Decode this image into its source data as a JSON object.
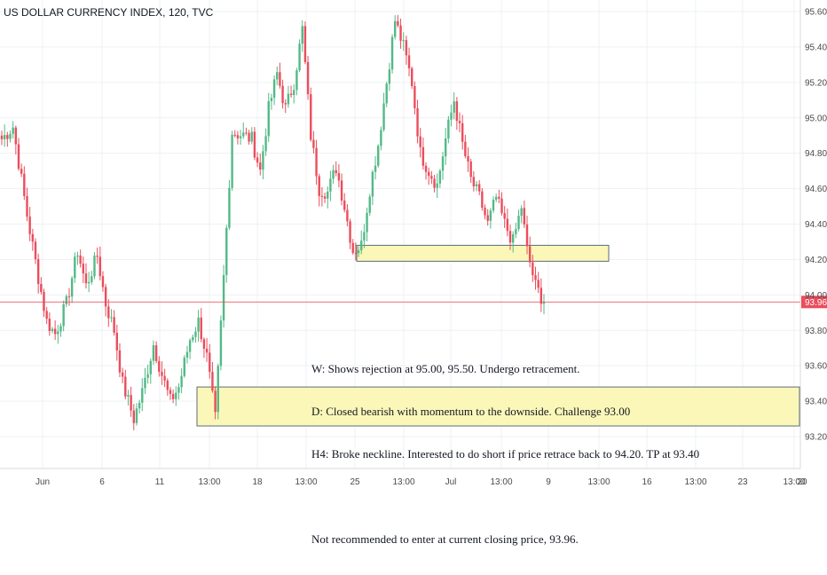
{
  "chart_title": "US DOLLAR CURRENCY INDEX, 120, TVC",
  "colors": {
    "up": "#53b987",
    "down": "#eb4d5c",
    "grid": "#eef0f3",
    "axis_text": "#4a4a4a",
    "zone_fill": "#fbf7b8",
    "zone_stroke": "#5b6e7a",
    "price_line": "#eb4d5c",
    "price_badge": "#eb4d5c"
  },
  "annotation_lines": [
    "W: Shows rejection at 95.00, 95.50. Undergo retracement.",
    "D: Closed bearish with momentum to the downside. Challenge 93.00",
    "H4: Broke neckline. Interested to do short if price retrace back to 94.20. TP at 93.40",
    "",
    "Not recommended to enter at current closing price, 93.96."
  ],
  "chart_data": {
    "type": "candlestick",
    "title": "US DOLLAR CURRENCY INDEX, 120, TVC",
    "ylim": [
      93.15,
      95.72
    ],
    "y_ticks": [
      "95.60",
      "95.40",
      "95.20",
      "95.00",
      "94.80",
      "94.60",
      "94.40",
      "94.20",
      "94.00",
      "93.80",
      "93.60",
      "93.40",
      "93.20"
    ],
    "x_ticks": [
      "Jun",
      "6",
      "11",
      "13:00",
      "18",
      "13:00",
      "25",
      "13:00",
      "Jul",
      "13:00",
      "9",
      "13:00",
      "16",
      "13:00",
      "23",
      "13:00",
      "20"
    ],
    "last_price": "93.96",
    "zones": [
      {
        "label": "resistance-zone",
        "y_low": 94.19,
        "y_high": 94.28
      },
      {
        "label": "target-zone",
        "y_low": 93.26,
        "y_high": 93.48
      }
    ],
    "anchors": [
      [
        0,
        94.88
      ],
      [
        4,
        94.95
      ],
      [
        9,
        94.45
      ],
      [
        13,
        94.1
      ],
      [
        16,
        93.85
      ],
      [
        19,
        93.78
      ],
      [
        23,
        93.95
      ],
      [
        27,
        94.25
      ],
      [
        30,
        94.05
      ],
      [
        34,
        94.22
      ],
      [
        37,
        93.95
      ],
      [
        40,
        93.8
      ],
      [
        43,
        93.5
      ],
      [
        47,
        93.3
      ],
      [
        50,
        93.45
      ],
      [
        54,
        93.72
      ],
      [
        57,
        93.55
      ],
      [
        60,
        93.4
      ],
      [
        63,
        93.48
      ],
      [
        67,
        93.75
      ],
      [
        70,
        93.85
      ],
      [
        73,
        93.65
      ],
      [
        76,
        93.3
      ],
      [
        79,
        94.1
      ],
      [
        82,
        94.92
      ],
      [
        86,
        94.9
      ],
      [
        89,
        94.88
      ],
      [
        92,
        94.7
      ],
      [
        95,
        95.05
      ],
      [
        98,
        95.25
      ],
      [
        101,
        95.05
      ],
      [
        104,
        95.2
      ],
      [
        107,
        95.5
      ],
      [
        110,
        94.9
      ],
      [
        113,
        94.6
      ],
      [
        116,
        94.58
      ],
      [
        119,
        94.72
      ],
      [
        122,
        94.5
      ],
      [
        125,
        94.25
      ],
      [
        128,
        94.28
      ],
      [
        131,
        94.6
      ],
      [
        134,
        94.85
      ],
      [
        137,
        95.2
      ],
      [
        140,
        95.55
      ],
      [
        143,
        95.4
      ],
      [
        146,
        95.2
      ],
      [
        149,
        94.8
      ],
      [
        152,
        94.7
      ],
      [
        155,
        94.62
      ],
      [
        158,
        94.88
      ],
      [
        161,
        95.1
      ],
      [
        164,
        94.85
      ],
      [
        167,
        94.65
      ],
      [
        170,
        94.55
      ],
      [
        173,
        94.4
      ],
      [
        176,
        94.55
      ],
      [
        179,
        94.4
      ],
      [
        182,
        94.3
      ],
      [
        185,
        94.5
      ],
      [
        187,
        94.25
      ],
      [
        190,
        94.05
      ],
      [
        193,
        93.96
      ]
    ]
  }
}
